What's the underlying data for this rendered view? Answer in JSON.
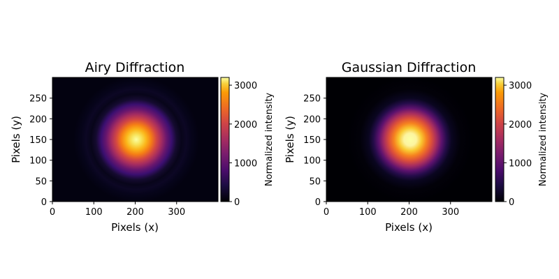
{
  "chart_data": [
    {
      "type": "heatmap",
      "title": "Airy Diffraction",
      "xlabel": "Pixels (x)",
      "ylabel": "Pixels (y)",
      "xlim": [
        0,
        400
      ],
      "ylim": [
        0,
        300
      ],
      "xticks": [
        0,
        100,
        200,
        300
      ],
      "yticks": [
        0,
        50,
        100,
        150,
        200,
        250
      ],
      "center": [
        200,
        150
      ],
      "peak_intensity": 3200,
      "profile": "airy",
      "colormap": "inferno",
      "colorbar": {
        "label": "Normalized intensity",
        "range": [
          0,
          3200
        ],
        "ticks": [
          0,
          1000,
          2000,
          3000
        ]
      }
    },
    {
      "type": "heatmap",
      "title": "Gaussian Diffraction",
      "xlabel": "Pixels (x)",
      "ylabel": "Pixels (y)",
      "xlim": [
        0,
        400
      ],
      "ylim": [
        0,
        300
      ],
      "xticks": [
        0,
        100,
        200,
        300
      ],
      "yticks": [
        0,
        50,
        100,
        150,
        200,
        250
      ],
      "center": [
        200,
        150
      ],
      "peak_intensity": 3200,
      "profile": "gaussian",
      "colormap": "inferno",
      "colorbar": {
        "label": "Normalized intensity",
        "range": [
          0,
          3200
        ],
        "ticks": [
          0,
          1000,
          2000,
          3000
        ]
      }
    }
  ]
}
